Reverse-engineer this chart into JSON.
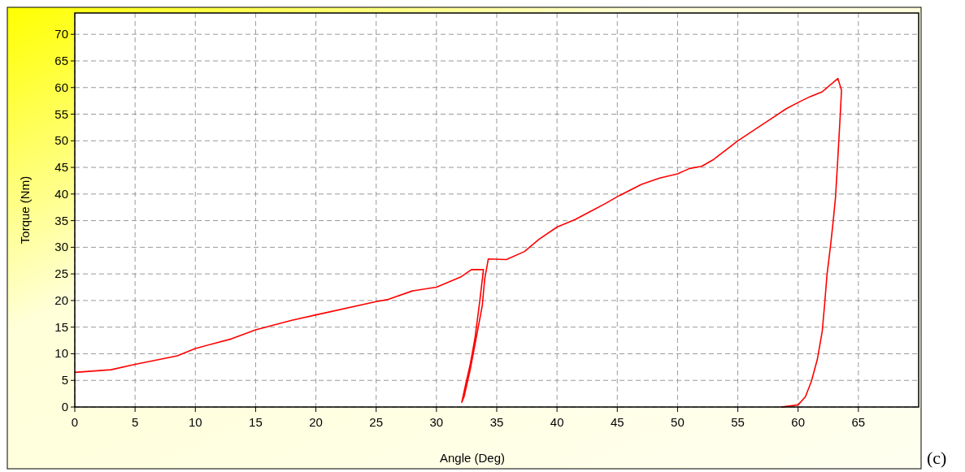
{
  "chart_data": {
    "type": "line",
    "xlabel": "Angle (Deg)",
    "ylabel": "Torque (Nm)",
    "annotations": [
      "(c)"
    ],
    "xlim": [
      0,
      70
    ],
    "ylim": [
      0,
      74
    ],
    "xticks": [
      0,
      5,
      10,
      15,
      20,
      25,
      30,
      35,
      40,
      45,
      50,
      55,
      60,
      65
    ],
    "yticks": [
      0,
      5,
      10,
      15,
      20,
      25,
      30,
      35,
      40,
      45,
      50,
      55,
      60,
      65,
      70
    ],
    "grid": true,
    "line_style": "solid",
    "series": [
      {
        "color": "#ff0000",
        "x": [
          0,
          3,
          5,
          8.5,
          10,
          13,
          15,
          18,
          20,
          25,
          26,
          28,
          30,
          32,
          32.9,
          33.9,
          33.6,
          33.2,
          32.8,
          32.4,
          32.1,
          32.3,
          32.8,
          33.3,
          33.8,
          34.0,
          34.3,
          35.8,
          37.3,
          38.5,
          40,
          41.5,
          43,
          44,
          45,
          47,
          48.5,
          50,
          51,
          52,
          53,
          55,
          57,
          58,
          59,
          60,
          61,
          62,
          63.3,
          63.6,
          63.5,
          63.3,
          63.1,
          62.9,
          62.7,
          62.4,
          62.2,
          62.0,
          61.6,
          61.1,
          60.6,
          60.0,
          58.6
        ],
        "values": [
          6.5,
          7,
          8,
          9.6,
          11,
          12.8,
          14.5,
          16.3,
          17.3,
          19.8,
          20.2,
          21.8,
          22.5,
          24.4,
          25.8,
          25.8,
          20,
          13,
          8,
          4,
          0.9,
          2,
          7,
          13,
          19,
          24,
          27.8,
          27.7,
          29.2,
          31.5,
          33.8,
          35.2,
          37,
          38.2,
          39.5,
          41.8,
          43,
          43.8,
          44.8,
          45.2,
          46.5,
          50,
          53,
          54.5,
          56,
          57.2,
          58.3,
          59.2,
          61.7,
          59.5,
          55,
          46.9,
          39.3,
          34.7,
          30.5,
          24.9,
          19.3,
          14.2,
          9,
          4.8,
          1.9,
          0.4,
          0
        ]
      }
    ]
  }
}
